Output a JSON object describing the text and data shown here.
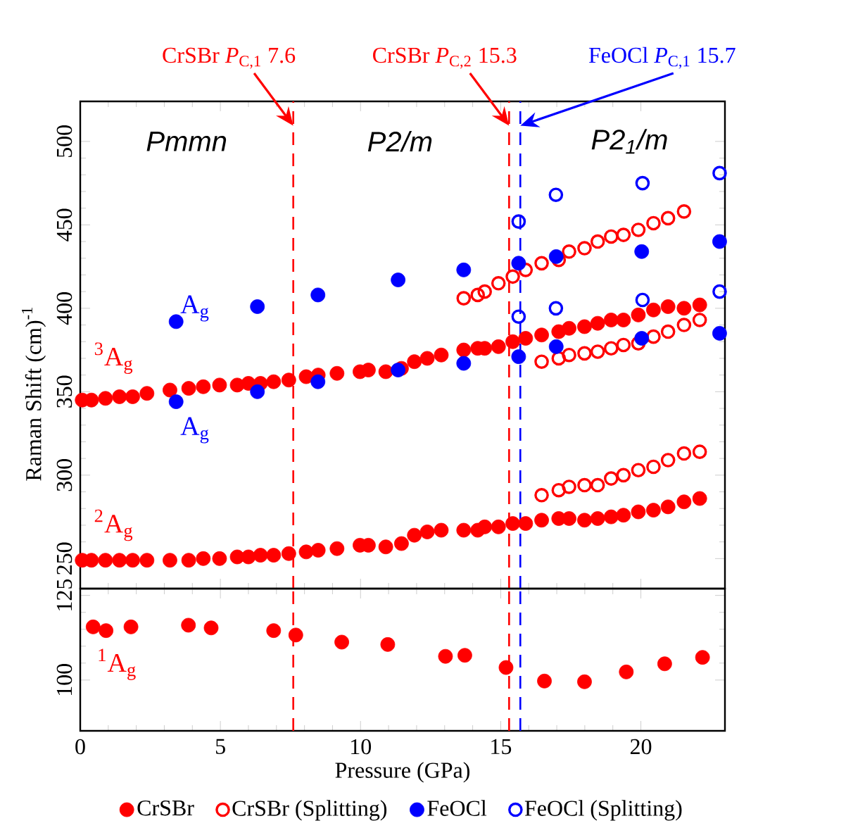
{
  "chart_data": [
    {
      "type": "scatter",
      "ylabel": "Raman Shift (cm)$^{-1}$",
      "xlim": [
        0,
        23
      ],
      "xticks": [
        0,
        5,
        10,
        15,
        20
      ],
      "ylim": [
        232,
        524
      ],
      "yticks": [
        250,
        300,
        350,
        400,
        450,
        500
      ],
      "tick_labels": "y",
      "legend": "bottom",
      "series": [
        {
          "name": "CrSBr",
          "color": "#ff0000",
          "marker": "circle",
          "x": [
            0.07,
            0.4,
            0.9,
            1.4,
            1.87,
            2.38,
            3.2,
            3.87,
            4.39,
            4.97,
            5.6,
            6.0,
            6.43,
            6.9,
            7.44,
            8.06,
            8.49,
            9.16,
            9.98,
            10.28,
            10.9,
            11.46,
            11.92,
            12.38,
            12.88,
            13.68,
            14.18,
            14.43,
            14.92,
            15.43,
            15.89,
            16.46,
            17.07,
            17.44,
            17.99,
            18.46,
            18.94,
            19.38,
            19.91,
            20.45,
            20.97,
            21.54,
            22.1,
            0.07,
            0.4,
            0.9,
            1.4,
            1.87,
            2.38,
            3.2,
            3.87,
            4.39,
            4.97,
            5.6,
            6.0,
            6.43,
            6.9,
            7.44,
            8.06,
            8.49,
            9.16,
            9.98,
            10.28,
            10.9,
            11.46,
            11.92,
            12.38,
            12.88,
            13.68,
            14.18,
            14.43,
            14.92,
            15.43,
            15.89,
            16.46,
            17.07,
            17.44,
            17.99,
            18.46,
            18.94,
            19.38,
            19.91,
            20.45,
            20.97,
            21.54,
            22.1
          ],
          "values": [
            345,
            345,
            346,
            347,
            347,
            349,
            351,
            352,
            353,
            354,
            354,
            355,
            355,
            356,
            357,
            359,
            360,
            361,
            362,
            363,
            362,
            364,
            368,
            370,
            372,
            375,
            376,
            376,
            377,
            380,
            382,
            384,
            386,
            388,
            389,
            391,
            393,
            393,
            396,
            399,
            401,
            400,
            402,
            249,
            249,
            249,
            249,
            249,
            249,
            249,
            249,
            250,
            250,
            251,
            251,
            252,
            252,
            253,
            254,
            255,
            256,
            258,
            258,
            257,
            259,
            264,
            266,
            267,
            267,
            267,
            269,
            269,
            271,
            271,
            273,
            274,
            274,
            273,
            274,
            275,
            276,
            278,
            279,
            281,
            284,
            286
          ]
        },
        {
          "name": "CrSBr (Splitting)",
          "color": "#ff0000",
          "marker": "circle_open",
          "x": [
            13.68,
            14.18,
            14.43,
            14.92,
            15.43,
            15.89,
            16.46,
            17.07,
            17.44,
            17.99,
            18.46,
            18.94,
            19.38,
            19.91,
            20.45,
            20.97,
            21.54,
            16.46,
            17.07,
            17.44,
            17.99,
            18.46,
            18.94,
            19.38,
            19.91,
            20.45,
            20.97,
            21.54,
            22.1,
            16.46,
            17.07,
            17.44,
            17.99,
            18.46,
            18.94,
            19.38,
            19.91,
            20.45,
            20.97,
            21.54,
            22.1
          ],
          "values": [
            406,
            408,
            410,
            415,
            419,
            423,
            427,
            429,
            434,
            436,
            440,
            443,
            444,
            447,
            451,
            454,
            458,
            368,
            370,
            372,
            373,
            374,
            376,
            378,
            379,
            383,
            386,
            390,
            393,
            288,
            291,
            293,
            294,
            294,
            298,
            300,
            303,
            305,
            309,
            313,
            314
          ]
        },
        {
          "name": "FeOCl",
          "color": "#0000ff",
          "marker": "circle",
          "x": [
            3.42,
            6.32,
            8.48,
            11.34,
            13.68,
            15.64,
            16.98,
            20.03,
            22.81,
            3.42,
            6.32,
            8.48,
            11.34,
            13.68,
            15.64,
            16.98,
            20.03,
            22.81
          ],
          "values": [
            392,
            401,
            408,
            417,
            423,
            427,
            431,
            434,
            440,
            344,
            350,
            356,
            363,
            367,
            371,
            377,
            382,
            385
          ]
        },
        {
          "name": "FeOCl (Splitting)",
          "color": "#0000ff",
          "marker": "circle_open",
          "x": [
            15.64,
            16.97,
            20.06,
            22.81,
            15.64,
            16.97,
            20.06,
            22.81
          ],
          "values": [
            452,
            468,
            475,
            481,
            395,
            400,
            405,
            410
          ]
        }
      ],
      "ref_lines": [
        {
          "axis": "x",
          "value": 7.6,
          "label": "CrSBr *P*$_{C,1}$ 7.6",
          "color": "#ff0000",
          "line_style": "dashed"
        },
        {
          "axis": "x",
          "value": 15.3,
          "label": "CrSBr *P*$_{C,2}$ 15.3",
          "color": "#ff0000",
          "line_style": "dashed"
        },
        {
          "axis": "x",
          "value": 15.7,
          "label": "FeOCl *P*$_{C,1}$ 15.7",
          "color": "#0000ff",
          "line_style": "dashed"
        }
      ],
      "annotations": [
        "Pmmn",
        "P2/m",
        "P2$_{1}$/m",
        "$^{3}$A$_{g}$",
        "$^{2}$A$_{g}$",
        "A$_{g}$",
        "A$_{g}$"
      ]
    },
    {
      "type": "scatter",
      "xlabel": "Pressure (GPa)",
      "xlim": [
        0,
        23
      ],
      "xticks": [
        0,
        5,
        10,
        15,
        20
      ],
      "ylim": [
        85,
        127
      ],
      "yticks": [
        100,
        125
      ],
      "series": [
        {
          "color": "#ff0000",
          "marker": "circle",
          "x": [
            0.46,
            0.92,
            1.81,
            3.86,
            4.67,
            6.9,
            7.69,
            9.33,
            10.97,
            13.03,
            13.72,
            15.19,
            16.56,
            17.99,
            19.48,
            20.85,
            22.2
          ],
          "values": [
            115.7,
            114.6,
            115.7,
            116.2,
            115.4,
            114.6,
            113.3,
            111.2,
            110.5,
            107.0,
            107.3,
            103.7,
            99.7,
            99.5,
            102.4,
            104.8,
            106.7
          ]
        }
      ],
      "ref_lines": [
        {
          "axis": "x",
          "value": 7.6,
          "color": "#ff0000",
          "line_style": "dashed"
        },
        {
          "axis": "x",
          "value": 15.3,
          "color": "#ff0000",
          "line_style": "dashed"
        },
        {
          "axis": "x",
          "value": 15.7,
          "color": "#0000ff",
          "line_style": "dashed"
        }
      ],
      "annotations": [
        "$^{1}$A$_{g}$"
      ]
    }
  ]
}
